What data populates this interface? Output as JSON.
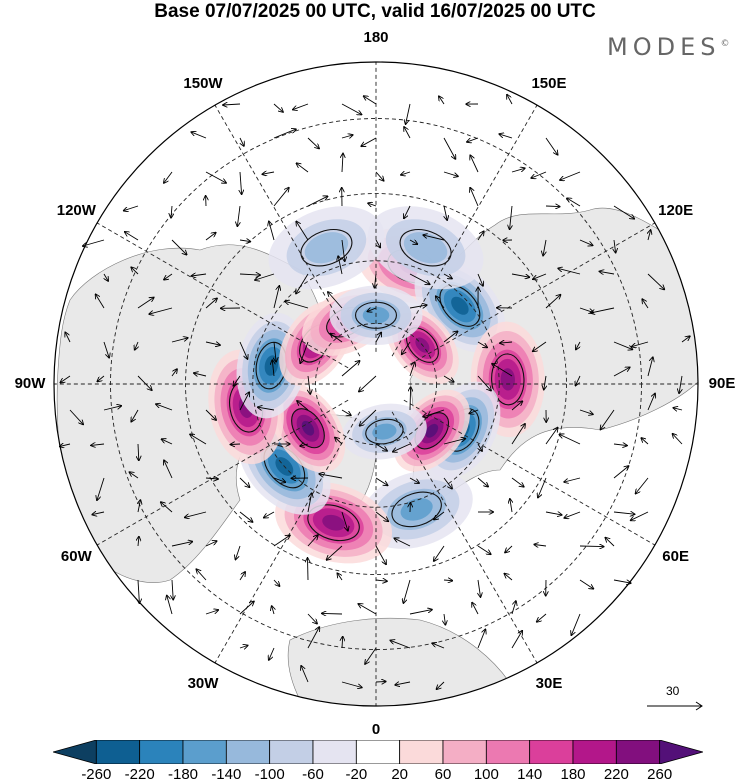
{
  "title": "Base 07/07/2025 00 UTC, valid 16/07/2025 00 UTC",
  "brand": "MODES",
  "brand_mark": "©",
  "map": {
    "projection": "north-polar-stereographic",
    "longitude_labels": [
      {
        "text": "180",
        "lon": 180
      },
      {
        "text": "150E",
        "lon": 150
      },
      {
        "text": "120E",
        "lon": 120
      },
      {
        "text": "90E",
        "lon": 90
      },
      {
        "text": "60E",
        "lon": 60
      },
      {
        "text": "30E",
        "lon": 30
      },
      {
        "text": "0",
        "lon": 0
      },
      {
        "text": "30W",
        "lon": -30
      },
      {
        "text": "60W",
        "lon": -60
      },
      {
        "text": "90W",
        "lon": -90
      },
      {
        "text": "120W",
        "lon": -120
      },
      {
        "text": "150W",
        "lon": -150
      }
    ],
    "anomaly_centers": [
      {
        "sign": "positive",
        "lon": 163,
        "lat": 60,
        "peak": 150
      },
      {
        "sign": "negative",
        "lon": 133,
        "lat": 62,
        "peak": -180
      },
      {
        "sign": "positive",
        "lon": 130,
        "lat": 75,
        "peak": 200
      },
      {
        "sign": "positive",
        "lon": 92,
        "lat": 58,
        "peak": 180
      },
      {
        "sign": "negative",
        "lon": 62,
        "lat": 66,
        "peak": -180
      },
      {
        "sign": "positive",
        "lon": 50,
        "lat": 72,
        "peak": 240
      },
      {
        "sign": "negative",
        "lon": 10,
        "lat": 78,
        "peak": -120
      },
      {
        "sign": "negative",
        "lon": 18,
        "lat": 58,
        "peak": -100
      },
      {
        "sign": "positive",
        "lon": -17,
        "lat": 55,
        "peak": 200
      },
      {
        "sign": "negative",
        "lon": -48,
        "lat": 60,
        "peak": -200
      },
      {
        "sign": "positive",
        "lon": -57,
        "lat": 70,
        "peak": 240
      },
      {
        "sign": "positive",
        "lon": -80,
        "lat": 58,
        "peak": 200
      },
      {
        "sign": "negative",
        "lon": -100,
        "lat": 64,
        "peak": -200
      },
      {
        "sign": "positive",
        "lon": -124,
        "lat": 72,
        "peak": 180
      },
      {
        "sign": "positive",
        "lon": -154,
        "lat": 73,
        "peak": 150
      },
      {
        "sign": "negative",
        "lon": 180,
        "lat": 73,
        "peak": -120
      },
      {
        "sign": "negative",
        "lon": 160,
        "lat": 55,
        "peak": -80
      },
      {
        "sign": "negative",
        "lon": -160,
        "lat": 55,
        "peak": -60
      }
    ]
  },
  "reference_vector": {
    "label": "30"
  },
  "colorbar": {
    "ticks": [
      "-260",
      "-220",
      "-180",
      "-140",
      "-100",
      "-60",
      "-20",
      "20",
      "60",
      "100",
      "140",
      "180",
      "220",
      "260"
    ],
    "colors": [
      "#0d3f61",
      "#0e5f92",
      "#2b83bb",
      "#5b9ecd",
      "#97b9dc",
      "#c3cfe6",
      "#e5e4f1",
      "#ffffff",
      "#fbdada",
      "#f4aec5",
      "#ec79b1",
      "#db3f9b",
      "#b3178a",
      "#820f7e",
      "#531078"
    ]
  }
}
